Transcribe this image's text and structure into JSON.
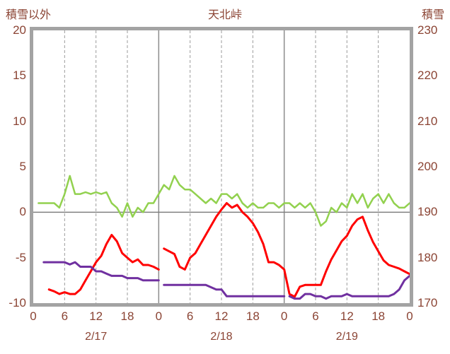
{
  "chart_data": {
    "type": "line",
    "title": "天北峠",
    "left_axis_label": "積雪以外",
    "right_axis_label": "積雪",
    "x_unit": "hour-of-day, hourly points over 3 days",
    "x_range_hours": [
      0,
      72
    ],
    "x_tick_hours": [
      0,
      6,
      12,
      18,
      24,
      30,
      36,
      42,
      48,
      54,
      60,
      66,
      72
    ],
    "x_tick_labels": [
      "0",
      "6",
      "12",
      "18",
      "0",
      "6",
      "12",
      "18",
      "0",
      "6",
      "12",
      "18",
      "0"
    ],
    "day_labels": [
      {
        "label": "2/17",
        "center_hour": 12
      },
      {
        "label": "2/18",
        "center_hour": 36
      },
      {
        "label": "2/19",
        "center_hour": 60
      }
    ],
    "left_axis_ticks": [
      "20",
      "15",
      "10",
      "5",
      "0",
      "-5",
      "-10"
    ],
    "right_axis_ticks": [
      "230",
      "220",
      "210",
      "200",
      "190",
      "180",
      "170"
    ],
    "ylim_left": [
      -10,
      20
    ],
    "ylim_right": [
      170,
      230
    ],
    "grid": {
      "dashed_vertical_hours": [
        6,
        12,
        18,
        30,
        36,
        42,
        54,
        60,
        66
      ],
      "solid_vertical_hours": [
        24,
        48
      ],
      "horizontal_zero_line": true
    },
    "series": [
      {
        "name": "green-line",
        "color": "#92d14f",
        "axis": "left",
        "stroke_width": 2.5,
        "breaks_after_hour": [],
        "values": [
          1,
          1,
          1,
          1,
          0.5,
          2,
          4,
          2,
          2,
          2.2,
          2,
          2.2,
          2,
          2.2,
          1,
          0.5,
          -0.5,
          1,
          -0.5,
          0.5,
          0,
          1,
          1,
          2,
          3,
          2.5,
          4,
          3,
          2.5,
          2.5,
          2,
          1.5,
          1,
          1.5,
          1,
          2,
          2,
          1.5,
          2,
          1,
          0.5,
          1,
          0.5,
          0.5,
          1,
          1,
          0.5,
          1,
          1,
          0.5,
          1,
          0.5,
          1,
          0,
          -1.5,
          -1,
          0.5,
          0,
          1,
          0.5,
          2,
          1,
          2,
          0.5,
          1.5,
          2,
          1,
          2,
          1,
          0.5,
          0.5,
          1
        ]
      },
      {
        "name": "red-line",
        "color": "#ff0000",
        "axis": "left",
        "stroke_width": 3,
        "breaks_after_hour": [
          24
        ],
        "values": [
          null,
          null,
          -8.5,
          -8.7,
          -9,
          -8.8,
          -9,
          -9,
          -8.5,
          -7.5,
          -6.5,
          -5.5,
          -4.8,
          -3.5,
          -2.5,
          -3.2,
          -4.5,
          -5,
          -5.5,
          -5.2,
          -5.8,
          -5.8,
          -6,
          -6.3,
          -4,
          -4.3,
          -4.6,
          -6,
          -6.3,
          -5,
          -4.5,
          -3.5,
          -2.5,
          -1.5,
          -0.5,
          0.3,
          1,
          0.5,
          0.8,
          0,
          -0.5,
          -1.2,
          -2.2,
          -3.5,
          -5.5,
          -5.5,
          -5.8,
          -6.3,
          -9,
          -9.3,
          -8.2,
          -8,
          -8,
          -8,
          -8,
          -6.5,
          -5.2,
          -4.2,
          -3.2,
          -2.6,
          -1.5,
          -0.8,
          -0.5,
          -2,
          -3.3,
          -4.3,
          -5.3,
          -5.8,
          -6,
          -6.2,
          -6.5,
          -6.8
        ]
      },
      {
        "name": "purple-line-snow-depth",
        "color": "#7030a0",
        "axis": "right",
        "stroke_width": 3,
        "breaks_after_hour": [
          24,
          48
        ],
        "values": [
          null,
          179,
          179,
          179,
          179,
          179,
          178.5,
          179,
          178,
          178,
          178,
          177,
          177,
          176.5,
          176,
          176,
          176,
          175.5,
          175.5,
          175.5,
          175,
          175,
          175,
          175,
          174,
          174,
          174,
          174,
          174,
          174,
          174,
          174,
          174,
          173.5,
          173,
          173,
          171.5,
          171.5,
          171.5,
          171.5,
          171.5,
          171.5,
          171.5,
          171.5,
          171.5,
          171.5,
          171.5,
          171.5,
          171.5,
          171,
          171,
          172,
          172,
          171.5,
          171.5,
          171,
          171.5,
          171.5,
          171.5,
          172,
          171.5,
          171.5,
          171.5,
          171.5,
          171.5,
          171.5,
          171.5,
          171.5,
          172,
          173,
          175,
          176
        ]
      }
    ]
  },
  "colors": {
    "text": "#8b4434",
    "frame": "#a3a3a3",
    "grid_dashed": "#9b9b9b",
    "grid_solid": "#8c8c8c",
    "zero_line": "#7f7f7f",
    "green_series": "#92d14f",
    "red_series": "#ff0000",
    "purple_series": "#7030a0"
  }
}
